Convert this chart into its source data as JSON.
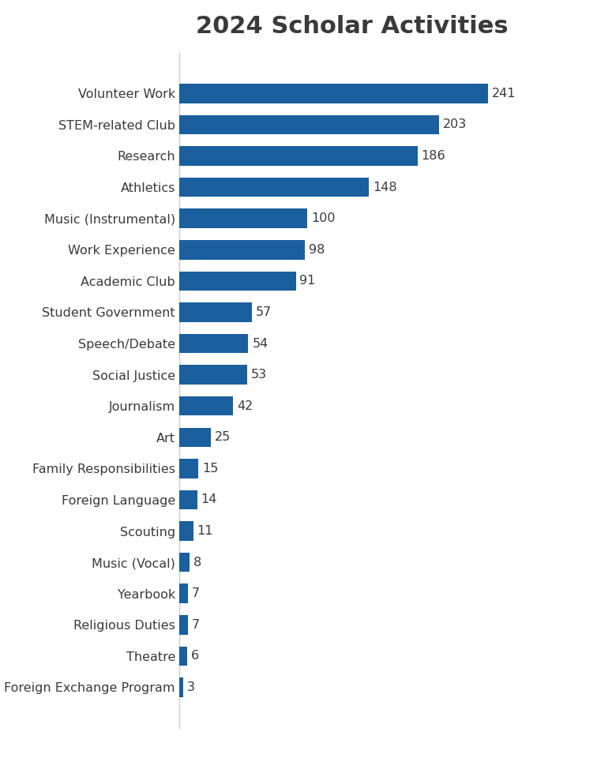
{
  "title": "2024 Scholar Activities",
  "categories": [
    "Volunteer Work",
    "STEM-related Club",
    "Research",
    "Athletics",
    "Music (Instrumental)",
    "Work Experience",
    "Academic Club",
    "Student Government",
    "Speech/Debate",
    "Social Justice",
    "Journalism",
    "Art",
    "Family Responsibilities",
    "Foreign Language",
    "Scouting",
    "Music (Vocal)",
    "Yearbook",
    "Religious Duties",
    "Theatre",
    "Foreign Exchange Program"
  ],
  "values": [
    241,
    203,
    186,
    148,
    100,
    98,
    91,
    57,
    54,
    53,
    42,
    25,
    15,
    14,
    11,
    8,
    7,
    7,
    6,
    3
  ],
  "bar_color": "#1a5f9e",
  "title_fontsize": 22,
  "label_fontsize": 11.5,
  "value_fontsize": 11.5,
  "background_color": "#ffffff",
  "title_color": "#3a3a3a",
  "text_color": "#3a3a3a",
  "spine_color": "#cccccc",
  "xlim": [
    0,
    270
  ],
  "bar_height": 0.62
}
